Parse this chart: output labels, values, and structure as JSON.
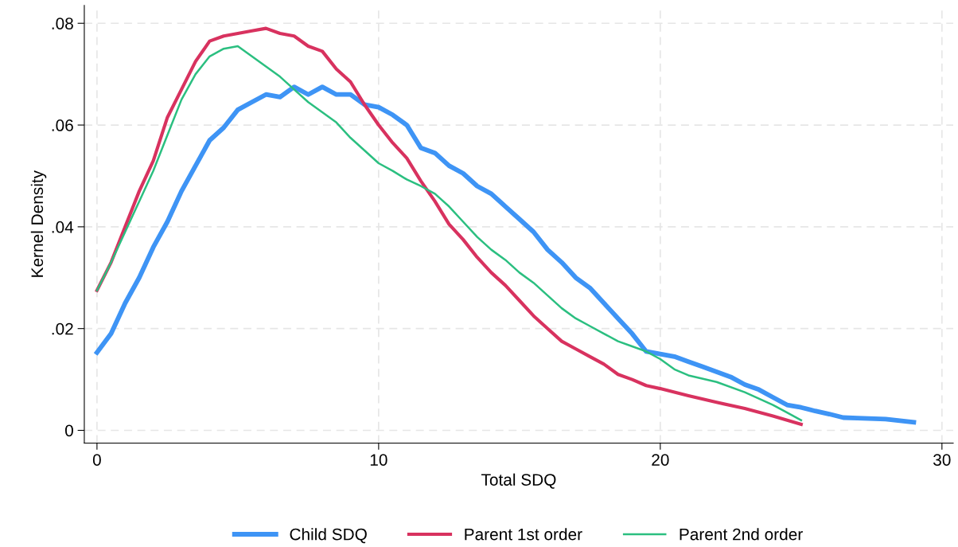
{
  "chart_data": {
    "type": "line",
    "xlabel": "Total SDQ",
    "ylabel": "Kernel Density",
    "xlim": [
      -0.45,
      30.4
    ],
    "ylim": [
      -0.0025,
      0.0835
    ],
    "xticks": [
      0,
      10,
      20,
      30
    ],
    "yticks": [
      0,
      {
        "value": 0.02,
        "label": ".02"
      },
      {
        "value": 0.04,
        "label": ".04"
      },
      {
        "value": 0.06,
        "label": ".06"
      },
      {
        "value": 0.08,
        "label": ".08"
      }
    ],
    "grid": true,
    "legend": "bottom",
    "line_style": "solid",
    "marker": "none",
    "series": [
      {
        "name": "Child SDQ",
        "color": "#3e94f5",
        "x": [
          0,
          0.5,
          1,
          1.5,
          2,
          2.5,
          3,
          3.5,
          4,
          4.5,
          5,
          5.5,
          6,
          6.5,
          7,
          7.5,
          8,
          8.5,
          9,
          9.5,
          10,
          10.5,
          11,
          11.5,
          12,
          12.5,
          13,
          13.5,
          14,
          14.5,
          15,
          15.5,
          16,
          16.5,
          17,
          17.5,
          18,
          18.5,
          19,
          19.5,
          20,
          20.5,
          21,
          21.5,
          22,
          22.5,
          23,
          23.5,
          24,
          24.5,
          25,
          25.5,
          26,
          26.5,
          27,
          28,
          29
        ],
        "values": [
          0.0153,
          0.019,
          0.025,
          0.03,
          0.036,
          0.041,
          0.047,
          0.052,
          0.057,
          0.0595,
          0.063,
          0.0645,
          0.066,
          0.0655,
          0.0675,
          0.066,
          0.0675,
          0.066,
          0.066,
          0.064,
          0.0635,
          0.062,
          0.06,
          0.0555,
          0.0545,
          0.052,
          0.0505,
          0.048,
          0.0465,
          0.044,
          0.0415,
          0.039,
          0.0355,
          0.033,
          0.03,
          0.028,
          0.025,
          0.022,
          0.019,
          0.0155,
          0.015,
          0.0145,
          0.0135,
          0.0125,
          0.0115,
          0.0105,
          0.009,
          0.008,
          0.0065,
          0.005,
          0.0045,
          0.0038,
          0.0032,
          0.0025,
          0.0024,
          0.0022,
          0.0016
        ]
      },
      {
        "name": "Parent 1st order",
        "color": "#d8325f",
        "x": [
          0,
          0.5,
          1,
          1.5,
          2,
          2.5,
          3,
          3.5,
          4,
          4.5,
          5,
          5.5,
          6,
          6.5,
          7,
          7.5,
          8,
          8.5,
          9,
          9.5,
          10,
          10.5,
          11,
          11.5,
          12,
          12.5,
          13,
          13.5,
          14,
          14.5,
          15,
          15.5,
          16,
          16.5,
          17,
          17.5,
          18,
          18.5,
          19,
          19.5,
          20,
          21,
          22,
          23,
          24,
          25
        ],
        "values": [
          0.0275,
          0.033,
          0.04,
          0.047,
          0.053,
          0.0615,
          0.067,
          0.0725,
          0.0765,
          0.0775,
          0.078,
          0.0785,
          0.079,
          0.078,
          0.0775,
          0.0755,
          0.0745,
          0.071,
          0.0685,
          0.064,
          0.06,
          0.0565,
          0.0535,
          0.049,
          0.045,
          0.0405,
          0.0375,
          0.034,
          0.031,
          0.0285,
          0.0255,
          0.0225,
          0.02,
          0.0175,
          0.016,
          0.0145,
          0.013,
          0.011,
          0.01,
          0.0088,
          0.0082,
          0.0068,
          0.0055,
          0.0043,
          0.0028,
          0.0012
        ]
      },
      {
        "name": "Parent 2nd order",
        "color": "#2bbf80",
        "x": [
          0,
          0.5,
          1,
          1.5,
          2,
          2.5,
          3,
          3.5,
          4,
          4.5,
          5,
          5.5,
          6,
          6.5,
          7,
          7.5,
          8,
          8.5,
          9,
          9.5,
          10,
          10.5,
          11,
          11.5,
          12,
          12.5,
          13,
          13.5,
          14,
          14.5,
          15,
          15.5,
          16,
          16.5,
          17,
          17.5,
          18,
          18.5,
          19,
          19.5,
          20,
          20.5,
          21,
          22,
          23,
          24,
          24.5,
          25
        ],
        "values": [
          0.0275,
          0.033,
          0.039,
          0.045,
          0.051,
          0.058,
          0.065,
          0.07,
          0.0735,
          0.075,
          0.0755,
          0.0735,
          0.0715,
          0.0695,
          0.067,
          0.0645,
          0.0625,
          0.0605,
          0.0575,
          0.055,
          0.0525,
          0.051,
          0.0493,
          0.048,
          0.0465,
          0.044,
          0.041,
          0.038,
          0.0355,
          0.0335,
          0.031,
          0.029,
          0.0265,
          0.024,
          0.022,
          0.0205,
          0.019,
          0.0175,
          0.0165,
          0.0155,
          0.014,
          0.012,
          0.0108,
          0.0095,
          0.0075,
          0.005,
          0.0035,
          0.002
        ]
      }
    ]
  }
}
